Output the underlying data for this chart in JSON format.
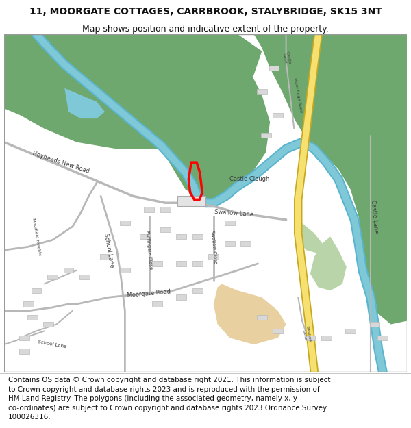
{
  "title_line1": "11, MOORGATE COTTAGES, CARRBROOK, STALYBRIDGE, SK15 3NT",
  "title_line2": "Map shows position and indicative extent of the property.",
  "footer_lines": [
    "Contains OS data © Crown copyright and database right 2021. This information is subject",
    "to Crown copyright and database rights 2023 and is reproduced with the permission of",
    "HM Land Registry. The polygons (including the associated geometry, namely x, y",
    "co-ordinates) are subject to Crown copyright and database rights 2023 Ordnance Survey",
    "100026316."
  ],
  "title_fontsize": 10,
  "subtitle_fontsize": 9,
  "footer_fontsize": 7.5,
  "white_bg": "#ffffff",
  "green_dark": "#6ea86e",
  "green_light": "#b8d4a8",
  "blue_water": "#7ec8d8",
  "yellow_road_fill": "#f5e070",
  "yellow_road_edge": "#c8a820",
  "grey_road": "#cccccc",
  "grey_building": "#d8d8d8",
  "grey_building_edge": "#bbbbbb",
  "sand_color": "#e8d0a0",
  "red_poly": "#ff0000",
  "text_color": "#3a3a3a",
  "map_border": "#999999"
}
